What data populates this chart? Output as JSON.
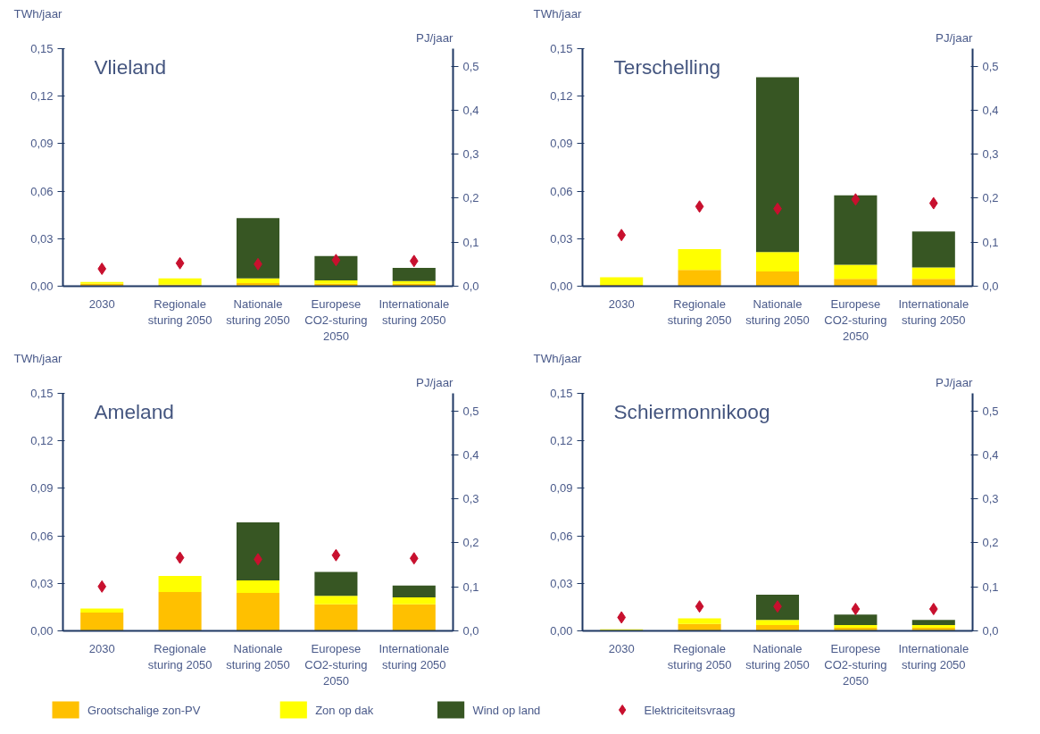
{
  "chart_data": [
    {
      "type": "bar",
      "stacked": true,
      "title": "Vlieland",
      "ylabel": "TWh/jaar",
      "y2label": "PJ/jaar",
      "legend": "bottom",
      "categories": [
        "2030",
        "Regionale sturing 2050",
        "Nationale sturing 2050",
        "Europese CO2-sturing 2050",
        "Internationale sturing 2050"
      ],
      "ylim": [
        0,
        0.15
      ],
      "yticks": [
        {
          "value": 0,
          "label": "0,00"
        },
        {
          "value": 0.03,
          "label": "0,03"
        },
        {
          "value": 0.06,
          "label": "0,06"
        },
        {
          "value": 0.09,
          "label": "0,09"
        },
        {
          "value": 0.12,
          "label": "0,12"
        },
        {
          "value": 0.15,
          "label": "0,15"
        }
      ],
      "y2lim": [
        0,
        0.54
      ],
      "y2ticks": [
        {
          "value": 0,
          "label": "0,0"
        },
        {
          "value": 0.1,
          "label": "0,1"
        },
        {
          "value": 0.2,
          "label": "0,2"
        },
        {
          "value": 0.3,
          "label": "0,3"
        },
        {
          "value": 0.4,
          "label": "0,4"
        },
        {
          "value": 0.5,
          "label": "0,5"
        }
      ],
      "series": [
        {
          "name": "Grootschalige zon-PV",
          "color": "#ffc000",
          "values": [
            0.0015,
            0.001,
            0.002,
            0.0015,
            0.0015
          ]
        },
        {
          "name": "Zon op dak",
          "color": "#ffff00",
          "values": [
            0.0012,
            0.004,
            0.003,
            0.0022,
            0.0018
          ]
        },
        {
          "name": "Wind op land",
          "color": "#375623",
          "values": [
            0,
            0,
            0.038,
            0.0153,
            0.0083
          ]
        },
        {
          "name": "Elektriciteitsvraag",
          "type": "scatter",
          "marker": "diamond",
          "color": "#c8102e",
          "values": [
            0.011,
            0.0145,
            0.0139,
            0.0165,
            0.0159
          ]
        }
      ]
    },
    {
      "type": "bar",
      "stacked": true,
      "title": "Terschelling",
      "ylabel": "TWh/jaar",
      "y2label": "PJ/jaar",
      "categories": [
        "2030",
        "Regionale sturing 2050",
        "Nationale sturing 2050",
        "Europese CO2-sturing 2050",
        "Internationale sturing 2050"
      ],
      "ylim": [
        0,
        0.15
      ],
      "yticks": [
        {
          "value": 0,
          "label": "0,00"
        },
        {
          "value": 0.03,
          "label": "0,03"
        },
        {
          "value": 0.06,
          "label": "0,06"
        },
        {
          "value": 0.09,
          "label": "0,09"
        },
        {
          "value": 0.12,
          "label": "0,12"
        },
        {
          "value": 0.15,
          "label": "0,15"
        }
      ],
      "y2lim": [
        0,
        0.54
      ],
      "y2ticks": [
        {
          "value": 0,
          "label": "0,0"
        },
        {
          "value": 0.1,
          "label": "0,1"
        },
        {
          "value": 0.2,
          "label": "0,2"
        },
        {
          "value": 0.3,
          "label": "0,3"
        },
        {
          "value": 0.4,
          "label": "0,4"
        },
        {
          "value": 0.5,
          "label": "0,5"
        }
      ],
      "series": [
        {
          "color": "#ffc000",
          "values": [
            0.0008,
            0.0103,
            0.0093,
            0.0047,
            0.0047
          ]
        },
        {
          "color": "#ffff00",
          "values": [
            0.0049,
            0.0131,
            0.0123,
            0.0088,
            0.0072
          ]
        },
        {
          "color": "#375623",
          "values": [
            0,
            0,
            0.1104,
            0.0439,
            0.0227
          ]
        },
        {
          "type": "scatter",
          "marker": "diamond",
          "color": "#c8102e",
          "values": [
            0.0323,
            0.0503,
            0.0489,
            0.0548,
            0.0524
          ]
        }
      ]
    },
    {
      "type": "bar",
      "stacked": true,
      "title": "Ameland",
      "ylabel": "TWh/jaar",
      "y2label": "PJ/jaar",
      "categories": [
        "2030",
        "Regionale sturing 2050",
        "Nationale sturing 2050",
        "Europese CO2-sturing 2050",
        "Internationale sturing 2050"
      ],
      "ylim": [
        0,
        0.15
      ],
      "yticks": [
        {
          "value": 0,
          "label": "0,00"
        },
        {
          "value": 0.03,
          "label": "0,03"
        },
        {
          "value": 0.06,
          "label": "0,06"
        },
        {
          "value": 0.09,
          "label": "0,09"
        },
        {
          "value": 0.12,
          "label": "0,12"
        },
        {
          "value": 0.15,
          "label": "0,15"
        }
      ],
      "y2lim": [
        0,
        0.54
      ],
      "y2ticks": [
        {
          "value": 0,
          "label": "0,0"
        },
        {
          "value": 0.1,
          "label": "0,1"
        },
        {
          "value": 0.2,
          "label": "0,2"
        },
        {
          "value": 0.3,
          "label": "0,3"
        },
        {
          "value": 0.4,
          "label": "0,4"
        },
        {
          "value": 0.5,
          "label": "0,5"
        }
      ],
      "series": [
        {
          "color": "#ffc000",
          "values": [
            0.0116,
            0.0245,
            0.0239,
            0.0168,
            0.0168
          ]
        },
        {
          "color": "#ffff00",
          "values": [
            0.0025,
            0.0102,
            0.008,
            0.0053,
            0.0043
          ]
        },
        {
          "color": "#375623",
          "values": [
            0,
            0,
            0.0366,
            0.0151,
            0.0075
          ]
        },
        {
          "type": "scatter",
          "marker": "diamond",
          "color": "#c8102e",
          "values": [
            0.028,
            0.0462,
            0.0452,
            0.0478,
            0.0458
          ]
        }
      ]
    },
    {
      "type": "bar",
      "stacked": true,
      "title": "Schiermonnikoog",
      "ylabel": "TWh/jaar",
      "y2label": "PJ/jaar",
      "categories": [
        "2030",
        "Regionale sturing 2050",
        "Nationale sturing 2050",
        "Europese CO2-sturing 2050",
        "Internationale sturing 2050"
      ],
      "ylim": [
        0,
        0.15
      ],
      "yticks": [
        {
          "value": 0,
          "label": "0,00"
        },
        {
          "value": 0.03,
          "label": "0,03"
        },
        {
          "value": 0.06,
          "label": "0,06"
        },
        {
          "value": 0.09,
          "label": "0,09"
        },
        {
          "value": 0.12,
          "label": "0,12"
        },
        {
          "value": 0.15,
          "label": "0,15"
        }
      ],
      "y2lim": [
        0,
        0.54
      ],
      "y2ticks": [
        {
          "value": 0,
          "label": "0,0"
        },
        {
          "value": 0.1,
          "label": "0,1"
        },
        {
          "value": 0.2,
          "label": "0,2"
        },
        {
          "value": 0.3,
          "label": "0,3"
        },
        {
          "value": 0.4,
          "label": "0,4"
        },
        {
          "value": 0.5,
          "label": "0,5"
        }
      ],
      "series": [
        {
          "color": "#ffc000",
          "values": [
            null,
            0.0043,
            0.0036,
            0.002,
            0.002
          ]
        },
        {
          "color": "#ffff00",
          "values": [
            0.001,
            0.0036,
            0.0033,
            0.0017,
            0.0017
          ]
        },
        {
          "color": "#375623",
          "values": [
            0,
            0,
            0.016,
            0.0066,
            0.0032
          ]
        },
        {
          "type": "scatter",
          "marker": "diamond",
          "color": "#c8102e",
          "values": [
            0.0085,
            0.0154,
            0.0154,
            0.0138,
            0.0138
          ]
        }
      ]
    }
  ]
}
